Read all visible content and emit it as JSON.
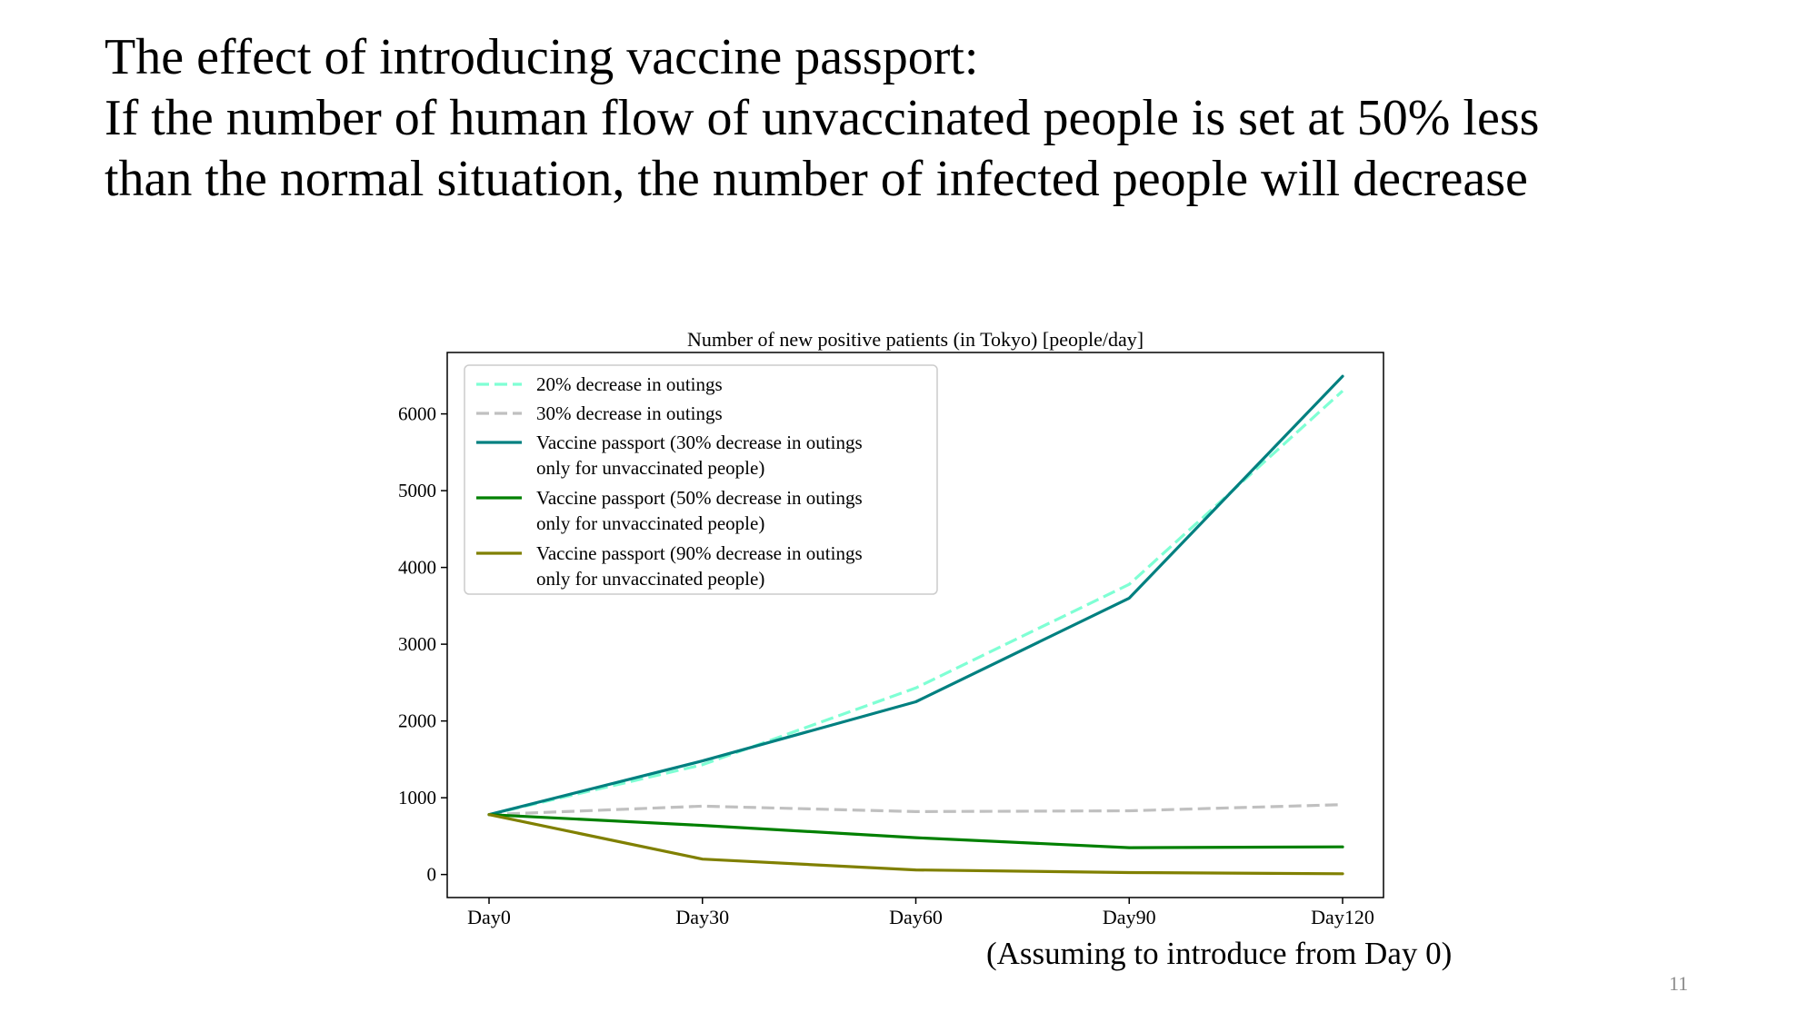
{
  "slide": {
    "title_lines": [
      "The effect of introducing vaccine passport:",
      "If the number of human flow of unvaccinated people is set at 50% less",
      "than the normal situation, the number of infected people will decrease"
    ],
    "footnote": "(Assuming to introduce from Day 0)",
    "page_number": "11"
  },
  "chart_data": {
    "type": "line",
    "title": "Number of new positive patients (in Tokyo) [people/day]",
    "xlabel": "",
    "ylabel": "",
    "categories": [
      "Day0",
      "Day30",
      "Day60",
      "Day90",
      "Day120"
    ],
    "x": [
      0,
      30,
      60,
      90,
      120
    ],
    "ylim": [
      -300,
      6800
    ],
    "yticks": [
      0,
      1000,
      2000,
      3000,
      4000,
      5000,
      6000
    ],
    "grid": false,
    "legend_position": "top-left",
    "series": [
      {
        "name": "20% decrease in outings",
        "values": [
          780,
          1430,
          2430,
          3780,
          6300
        ],
        "color": "#7FFFD4",
        "dash": "dashed"
      },
      {
        "name": "30% decrease in outings",
        "values": [
          780,
          890,
          820,
          830,
          910
        ],
        "color": "#C0C0C0",
        "dash": "dashed"
      },
      {
        "name": "Vaccine passport (30% decrease in outings only for unvaccinated people)",
        "legend_lines": [
          "Vaccine passport (30% decrease in outings",
          "only for unvaccinated people)"
        ],
        "values": [
          780,
          1480,
          2250,
          3600,
          6490
        ],
        "color": "#008080",
        "dash": "solid"
      },
      {
        "name": "Vaccine passport (50% decrease in outings only for unvaccinated people)",
        "legend_lines": [
          "Vaccine passport (50% decrease in outings",
          "only for unvaccinated people)"
        ],
        "values": [
          780,
          640,
          480,
          350,
          360
        ],
        "color": "#008000",
        "dash": "solid"
      },
      {
        "name": "Vaccine passport (90% decrease in outings only for unvaccinated people)",
        "legend_lines": [
          "Vaccine passport (90% decrease in outings",
          "only for unvaccinated people)"
        ],
        "values": [
          780,
          200,
          60,
          25,
          10
        ],
        "color": "#808000",
        "dash": "solid"
      }
    ]
  }
}
